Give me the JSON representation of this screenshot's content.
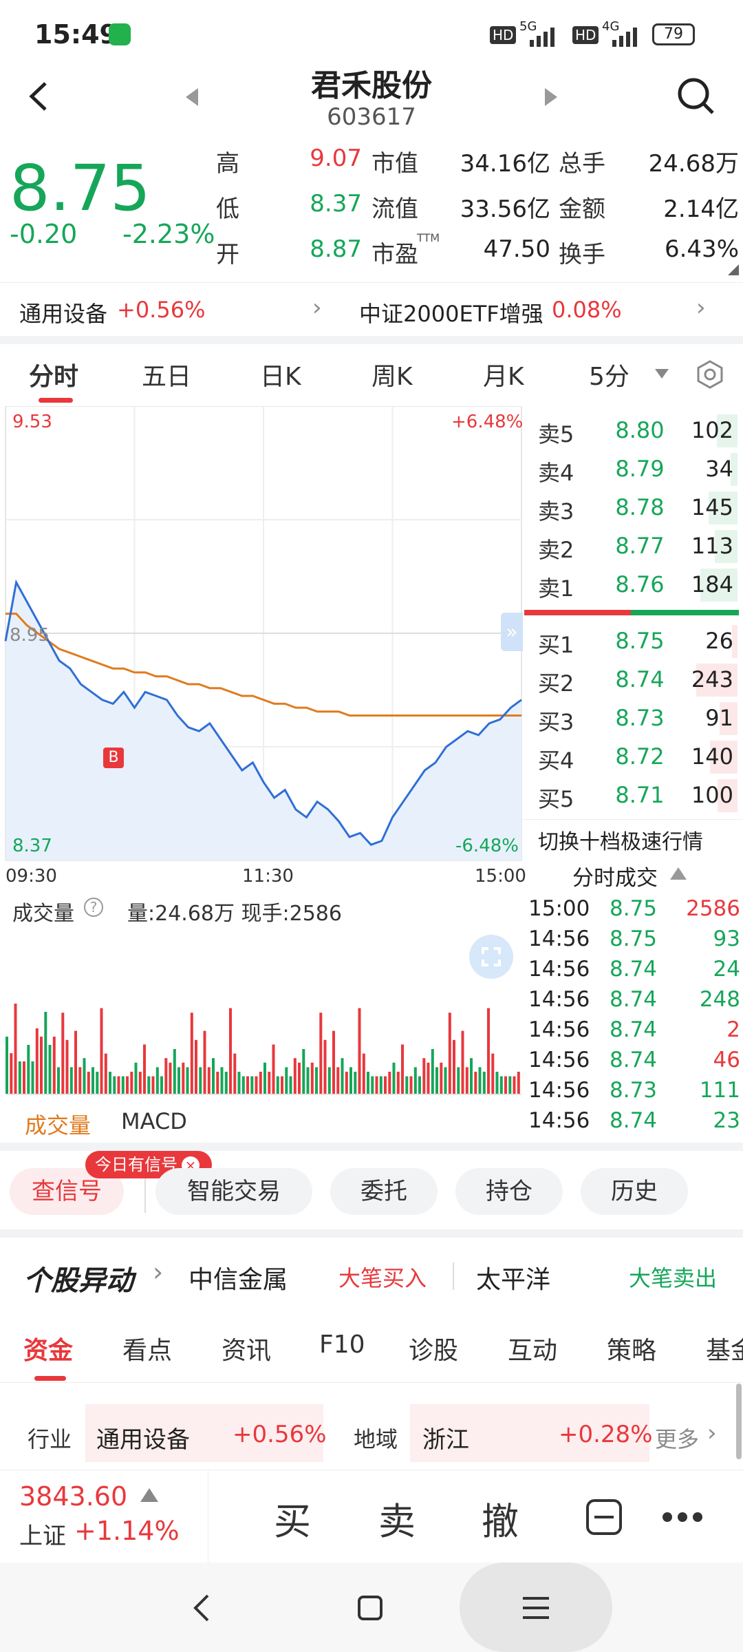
{
  "status": {
    "time": "15:49",
    "network1": "5G",
    "network2": "4G",
    "hd": "HD",
    "battery": "79"
  },
  "header": {
    "name": "君禾股份",
    "code": "603617"
  },
  "quote": {
    "price": "8.75",
    "change": "-0.20",
    "change_pct": "-2.23%",
    "rows": [
      {
        "l1": "高",
        "v1": "9.07",
        "l2": "市值",
        "v2": "34.16亿",
        "l3": "总手",
        "v3": "24.68万"
      },
      {
        "l1": "低",
        "v1": "8.37",
        "l2": "流值",
        "v2": "33.56亿",
        "l3": "金额",
        "v3": "2.14亿"
      },
      {
        "l1": "开",
        "v1": "8.87",
        "l2": "市盈",
        "v2": "47.50",
        "l3": "换手",
        "v3": "6.43%"
      }
    ],
    "pe_sup": "TTM"
  },
  "sector": {
    "industry": "通用设备",
    "industry_pct": "+0.56%",
    "etf": "中证2000ETF增强",
    "etf_pct": "0.08%"
  },
  "tabs": [
    "分时",
    "五日",
    "日K",
    "周K",
    "月K",
    "5分"
  ],
  "chart": {
    "high": "9.53",
    "low": "8.37",
    "high_pct": "+6.48%",
    "low_pct": "-6.48%",
    "ref": "8.95",
    "t_open": "09:30",
    "t_mid": "11:30",
    "t_close": "15:00",
    "marker": "B",
    "vol_label": "成交量",
    "vol_info": "量:24.68万 现手:2586",
    "sub_tab1": "成交量",
    "sub_tab2": "MACD"
  },
  "chart_data": {
    "type": "line",
    "title": "",
    "ylim": [
      8.37,
      9.53
    ],
    "prev_close": 8.95,
    "series": [
      {
        "values": [
          8.93,
          9.08,
          9.03,
          8.98,
          8.93,
          8.88,
          8.86,
          8.82,
          8.8,
          8.78,
          8.77,
          8.8,
          8.76,
          8.8,
          8.79,
          8.78,
          8.74,
          8.71,
          8.7,
          8.72,
          8.68,
          8.64,
          8.6,
          8.62,
          8.57,
          8.53,
          8.55,
          8.5,
          8.48,
          8.52,
          8.5,
          8.47,
          8.43,
          8.44,
          8.41,
          8.42,
          8.48,
          8.52,
          8.56,
          8.6,
          8.62,
          8.66,
          8.68,
          8.7,
          8.69,
          8.72,
          8.73,
          8.76,
          8.78
        ]
      },
      {
        "values": [
          9.0,
          9.0,
          8.97,
          8.95,
          8.93,
          8.91,
          8.9,
          8.89,
          8.88,
          8.87,
          8.86,
          8.86,
          8.85,
          8.85,
          8.84,
          8.84,
          8.83,
          8.82,
          8.82,
          8.81,
          8.81,
          8.8,
          8.79,
          8.79,
          8.78,
          8.77,
          8.77,
          8.76,
          8.76,
          8.75,
          8.75,
          8.75,
          8.74,
          8.74,
          8.74,
          8.74,
          8.74,
          8.74,
          8.74,
          8.74,
          8.74,
          8.74,
          8.74,
          8.74,
          8.74,
          8.74,
          8.74,
          8.74,
          8.74
        ]
      }
    ]
  },
  "orderbook": {
    "asks": [
      {
        "label": "卖5",
        "price": "8.80",
        "vol": "102",
        "w": 0.3
      },
      {
        "label": "卖4",
        "price": "8.79",
        "vol": "34",
        "w": 0.1
      },
      {
        "label": "卖3",
        "price": "8.78",
        "vol": "145",
        "w": 0.42
      },
      {
        "label": "卖2",
        "price": "8.77",
        "vol": "113",
        "w": 0.33
      },
      {
        "label": "卖1",
        "price": "8.76",
        "vol": "184",
        "w": 0.54
      }
    ],
    "bids": [
      {
        "label": "买1",
        "price": "8.75",
        "vol": "26",
        "w": 0.08
      },
      {
        "label": "买2",
        "price": "8.74",
        "vol": "243",
        "w": 0.6
      },
      {
        "label": "买3",
        "price": "8.73",
        "vol": "91",
        "w": 0.26
      },
      {
        "label": "买4",
        "price": "8.72",
        "vol": "140",
        "w": 0.4
      },
      {
        "label": "买5",
        "price": "8.71",
        "vol": "100",
        "w": 0.29
      }
    ],
    "switch_label": "切换十档极速行情",
    "ticks_title": "分时成交",
    "ticks": [
      {
        "t": "15:00",
        "p": "8.75",
        "v": "2586",
        "dir": "up"
      },
      {
        "t": "14:56",
        "p": "8.75",
        "v": "93",
        "dir": "down"
      },
      {
        "t": "14:56",
        "p": "8.74",
        "v": "24",
        "dir": "down"
      },
      {
        "t": "14:56",
        "p": "8.74",
        "v": "248",
        "dir": "down"
      },
      {
        "t": "14:56",
        "p": "8.74",
        "v": "2",
        "dir": "up"
      },
      {
        "t": "14:56",
        "p": "8.74",
        "v": "46",
        "dir": "up"
      },
      {
        "t": "14:56",
        "p": "8.73",
        "v": "111",
        "dir": "down"
      },
      {
        "t": "14:56",
        "p": "8.74",
        "v": "23",
        "dir": "down"
      }
    ]
  },
  "actions": {
    "signal_badge": "今日有信号",
    "signal": "查信号",
    "smart": "智能交易",
    "entrust": "委托",
    "position": "持仓",
    "history": "历史"
  },
  "abnormal": {
    "title": "个股异动",
    "s1": "中信金属",
    "s1_tag": "大笔买入",
    "s2": "太平洋",
    "s2_tag": "大笔卖出"
  },
  "info_tabs": [
    "资金",
    "看点",
    "资讯",
    "F10",
    "诊股",
    "互动",
    "策略",
    "基金"
  ],
  "industry_row": {
    "l1": "行业",
    "v1": "通用设备",
    "p1": "+0.56%",
    "l2": "地域",
    "v2": "浙江",
    "p2": "+0.28%",
    "more": "更多"
  },
  "bottom": {
    "index_val": "3843.60",
    "index_name": "上证",
    "index_pct": "+1.14%",
    "buy": "买",
    "sell": "卖",
    "cancel": "撤"
  },
  "colors": {
    "up": "#e8383c",
    "down": "#16a659",
    "line": "#2f6fd6",
    "avg": "#e07b1e"
  }
}
